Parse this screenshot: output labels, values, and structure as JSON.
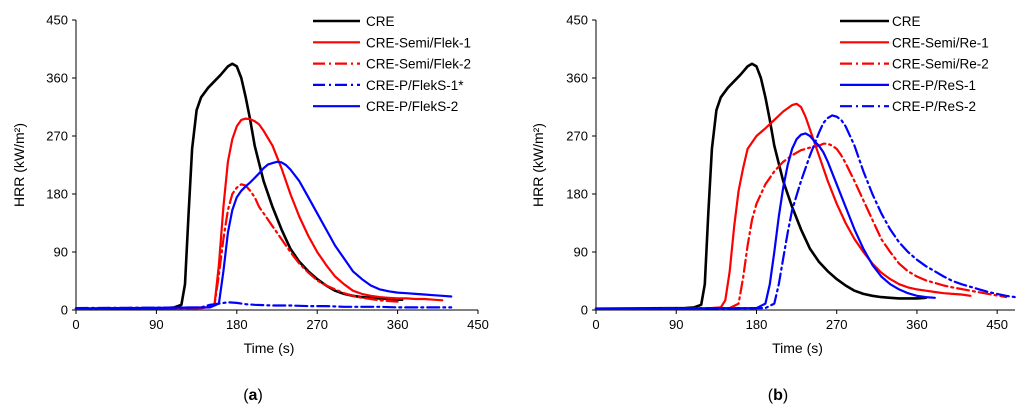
{
  "chart_data": [
    {
      "type": "line",
      "panel_label_letter": "a",
      "xlabel": "Time (s)",
      "ylabel": "HRR (kW/m²)",
      "xlim": [
        0,
        450
      ],
      "ylim": [
        0,
        450
      ],
      "xticks": [
        0,
        90,
        180,
        270,
        360,
        450
      ],
      "yticks": [
        0,
        90,
        180,
        270,
        360,
        450
      ],
      "grid": false,
      "legend_position": "top-right",
      "series": [
        {
          "name": "CRE",
          "color": "#000000",
          "dash": "solid",
          "width": 2.6,
          "x": [
            0,
            100,
            110,
            118,
            122,
            126,
            130,
            135,
            140,
            148,
            155,
            162,
            170,
            175,
            180,
            185,
            190,
            195,
            200,
            210,
            220,
            230,
            240,
            250,
            260,
            270,
            280,
            290,
            300,
            310,
            320,
            330,
            340,
            350,
            360,
            365
          ],
          "y": [
            2,
            3,
            4,
            8,
            40,
            150,
            250,
            310,
            330,
            345,
            355,
            365,
            378,
            382,
            378,
            360,
            330,
            295,
            255,
            200,
            160,
            125,
            95,
            75,
            60,
            48,
            38,
            30,
            25,
            22,
            20,
            19,
            18,
            17,
            16,
            16
          ]
        },
        {
          "name": "CRE-Semi/Flek-1",
          "color": "#ff0000",
          "dash": "solid",
          "width": 2.2,
          "x": [
            0,
            140,
            150,
            155,
            160,
            165,
            170,
            175,
            180,
            185,
            190,
            195,
            200,
            205,
            210,
            220,
            230,
            240,
            250,
            260,
            270,
            280,
            290,
            300,
            310,
            320,
            330,
            340,
            350,
            360,
            370,
            380,
            390,
            400,
            410
          ],
          "y": [
            2,
            3,
            5,
            8,
            70,
            160,
            230,
            265,
            285,
            295,
            297,
            296,
            293,
            288,
            278,
            255,
            220,
            180,
            145,
            115,
            90,
            70,
            52,
            40,
            30,
            25,
            22,
            20,
            19,
            18,
            18,
            17,
            17,
            16,
            15
          ]
        },
        {
          "name": "CRE-Semi/Flek-2",
          "color": "#ff0000",
          "dash": "dashdot",
          "width": 2.2,
          "x": [
            0,
            140,
            150,
            155,
            160,
            165,
            170,
            175,
            180,
            185,
            190,
            195,
            200,
            205,
            210,
            220,
            230,
            240,
            250,
            260,
            270,
            280,
            290,
            300,
            310,
            320,
            330,
            340,
            350,
            360
          ],
          "y": [
            2,
            3,
            5,
            8,
            55,
            110,
            155,
            180,
            190,
            195,
            193,
            185,
            175,
            160,
            150,
            130,
            110,
            90,
            72,
            58,
            46,
            38,
            32,
            26,
            22,
            19,
            17,
            15,
            14,
            13
          ]
        },
        {
          "name": "CRE-P/FlekS-1*",
          "color": "#0000ff",
          "dash": "dashdot",
          "width": 2.2,
          "x": [
            0,
            140,
            150,
            160,
            170,
            180,
            190,
            200,
            220,
            240,
            260,
            280,
            300,
            320,
            340,
            360,
            380,
            400,
            420
          ],
          "y": [
            3,
            4,
            8,
            10,
            12,
            11,
            9,
            8,
            7,
            7,
            6,
            6,
            5,
            5,
            5,
            4,
            4,
            4,
            4
          ]
        },
        {
          "name": "CRE-P/FlekS-2",
          "color": "#0000ff",
          "dash": "solid",
          "width": 2.2,
          "x": [
            0,
            150,
            160,
            165,
            170,
            175,
            180,
            185,
            190,
            195,
            200,
            205,
            210,
            215,
            220,
            225,
            230,
            235,
            240,
            250,
            260,
            270,
            280,
            290,
            300,
            310,
            320,
            330,
            340,
            350,
            360,
            370,
            380,
            390,
            400,
            410,
            420
          ],
          "y": [
            2,
            4,
            10,
            60,
            120,
            155,
            175,
            185,
            192,
            198,
            205,
            212,
            220,
            226,
            228,
            230,
            229,
            225,
            218,
            200,
            175,
            150,
            125,
            100,
            80,
            60,
            48,
            38,
            32,
            29,
            27,
            26,
            25,
            24,
            23,
            22,
            21
          ]
        }
      ]
    },
    {
      "type": "line",
      "panel_label_letter": "b",
      "xlabel": "Time (s)",
      "ylabel": "HRR (kW/m²)",
      "xlim": [
        0,
        470
      ],
      "ylim": [
        0,
        450
      ],
      "xticks": [
        0,
        90,
        180,
        270,
        360,
        450
      ],
      "yticks": [
        0,
        90,
        180,
        270,
        360,
        450
      ],
      "grid": false,
      "legend_position": "top-right",
      "series": [
        {
          "name": "CRE",
          "color": "#000000",
          "dash": "solid",
          "width": 2.6,
          "x": [
            0,
            100,
            110,
            118,
            122,
            126,
            130,
            135,
            140,
            148,
            155,
            162,
            170,
            175,
            180,
            185,
            190,
            195,
            200,
            210,
            220,
            230,
            240,
            250,
            260,
            270,
            280,
            290,
            300,
            310,
            320,
            330,
            340,
            350,
            360,
            370
          ],
          "y": [
            2,
            3,
            4,
            8,
            40,
            150,
            250,
            310,
            330,
            345,
            355,
            365,
            378,
            382,
            378,
            360,
            330,
            295,
            255,
            200,
            160,
            125,
            95,
            75,
            60,
            48,
            38,
            30,
            25,
            22,
            20,
            19,
            18,
            18,
            18,
            19
          ]
        },
        {
          "name": "CRE-Semi/Re-1",
          "color": "#ff0000",
          "dash": "solid",
          "width": 2.2,
          "x": [
            0,
            120,
            140,
            145,
            150,
            155,
            160,
            165,
            170,
            180,
            190,
            200,
            210,
            220,
            225,
            230,
            235,
            240,
            250,
            260,
            270,
            280,
            290,
            300,
            310,
            320,
            330,
            340,
            350,
            360,
            370,
            380,
            390,
            400,
            410,
            420
          ],
          "y": [
            2,
            2,
            4,
            15,
            60,
            130,
            185,
            220,
            250,
            270,
            282,
            295,
            308,
            318,
            320,
            315,
            300,
            280,
            240,
            200,
            165,
            135,
            110,
            90,
            72,
            58,
            48,
            40,
            35,
            32,
            30,
            28,
            26,
            25,
            24,
            22
          ]
        },
        {
          "name": "CRE-Semi/Re-2",
          "color": "#ff0000",
          "dash": "dashdot",
          "width": 2.2,
          "x": [
            0,
            150,
            160,
            165,
            170,
            175,
            180,
            190,
            200,
            210,
            220,
            230,
            240,
            250,
            255,
            260,
            265,
            270,
            275,
            280,
            290,
            300,
            310,
            320,
            330,
            340,
            350,
            360,
            370,
            380,
            390,
            400,
            420,
            440,
            460
          ],
          "y": [
            2,
            3,
            10,
            50,
            100,
            140,
            165,
            195,
            215,
            230,
            240,
            248,
            252,
            255,
            258,
            258,
            255,
            250,
            240,
            228,
            200,
            170,
            140,
            110,
            90,
            72,
            60,
            52,
            46,
            42,
            38,
            35,
            30,
            25,
            20
          ]
        },
        {
          "name": "CRE-P/ReS-1",
          "color": "#0000ff",
          "dash": "solid",
          "width": 2.2,
          "x": [
            0,
            180,
            190,
            195,
            200,
            205,
            210,
            215,
            220,
            225,
            230,
            235,
            240,
            245,
            250,
            255,
            260,
            270,
            280,
            290,
            300,
            310,
            320,
            330,
            340,
            350,
            360,
            370,
            380
          ],
          "y": [
            2,
            3,
            10,
            40,
            90,
            145,
            190,
            225,
            250,
            265,
            272,
            274,
            270,
            262,
            255,
            245,
            230,
            195,
            160,
            125,
            95,
            70,
            52,
            40,
            32,
            26,
            22,
            20,
            19
          ]
        },
        {
          "name": "CRE-P/ReS-2",
          "color": "#0000ff",
          "dash": "dashdot",
          "width": 2.2,
          "x": [
            0,
            190,
            200,
            205,
            210,
            215,
            220,
            230,
            240,
            250,
            255,
            260,
            265,
            270,
            275,
            280,
            290,
            300,
            310,
            320,
            330,
            340,
            350,
            360,
            370,
            380,
            390,
            400,
            410,
            420,
            430,
            440,
            450,
            460,
            470
          ],
          "y": [
            2,
            3,
            10,
            40,
            80,
            120,
            155,
            200,
            240,
            275,
            290,
            298,
            302,
            300,
            295,
            285,
            255,
            215,
            180,
            150,
            125,
            105,
            90,
            78,
            68,
            60,
            52,
            45,
            40,
            36,
            32,
            28,
            25,
            22,
            20
          ]
        }
      ]
    }
  ]
}
